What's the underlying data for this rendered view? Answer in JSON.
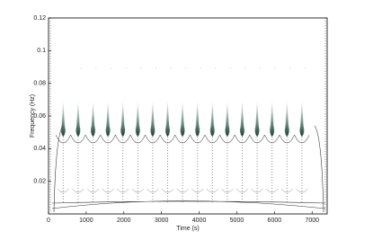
{
  "chart_data": {
    "type": "spectrogram",
    "x_label": "Time (s)",
    "y_label": "Frequency (Hz)",
    "xlim": [
      0,
      7400
    ],
    "xticks": [
      0,
      1000,
      2000,
      3000,
      4000,
      5000,
      6000,
      7000
    ],
    "ylim": [
      0,
      0.12
    ],
    "yticks": [
      0.02,
      0.04,
      0.06,
      0.08,
      0.1,
      0.12
    ]
  }
}
